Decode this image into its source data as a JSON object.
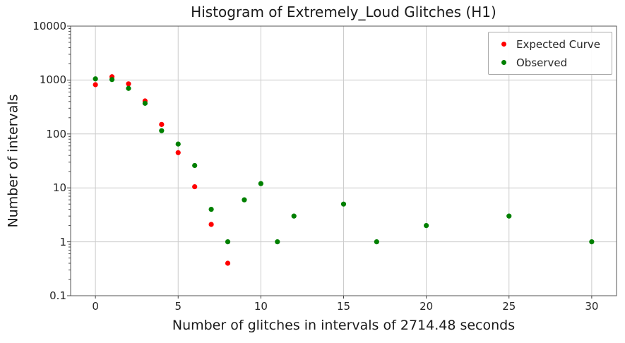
{
  "figure": {
    "title": "Histogram of Extremely_Loud Glitches (H1)",
    "xlabel": "Number of glitches in intervals of 2714.48 seconds",
    "ylabel": "Number of intervals"
  },
  "legend": {
    "items": [
      {
        "label": "Expected Curve",
        "color": "#ff0000"
      },
      {
        "label": "Observed",
        "color": "#008000"
      }
    ]
  },
  "colors": {
    "grid": "#cccccc",
    "spine": "#555555",
    "tick": "#444444",
    "expected": "#ff0000",
    "observed": "#008000"
  },
  "chart_data": {
    "type": "scatter",
    "title": "Histogram of Extremely_Loud Glitches (H1)",
    "xlabel": "Number of glitches in intervals of 2714.48 seconds",
    "ylabel": "Number of intervals",
    "y_scale": "log",
    "grid": true,
    "legend_position": "upper right",
    "xlim": [
      -1.5,
      31.5
    ],
    "ylim": [
      0.1,
      10000
    ],
    "x_ticks": [
      0,
      5,
      10,
      15,
      20,
      25,
      30
    ],
    "y_ticks": [
      10000,
      1000,
      100,
      10,
      1,
      0.1
    ],
    "series": [
      {
        "name": "Expected Curve",
        "color": "#ff0000",
        "marker": "dot",
        "x": [
          0,
          1,
          2,
          3,
          4,
          5,
          6,
          7,
          8
        ],
        "y": [
          820,
          1150,
          850,
          410,
          150,
          45,
          10.5,
          2.1,
          0.4
        ]
      },
      {
        "name": "Observed",
        "color": "#008000",
        "marker": "dot",
        "x": [
          0,
          1,
          2,
          3,
          4,
          5,
          6,
          7,
          8,
          9,
          10,
          11,
          12,
          15,
          17,
          20,
          25,
          30
        ],
        "y": [
          1050,
          1020,
          700,
          370,
          115,
          65,
          26,
          4,
          1,
          6,
          12,
          1,
          3,
          5,
          1,
          2,
          3,
          1
        ]
      }
    ]
  }
}
